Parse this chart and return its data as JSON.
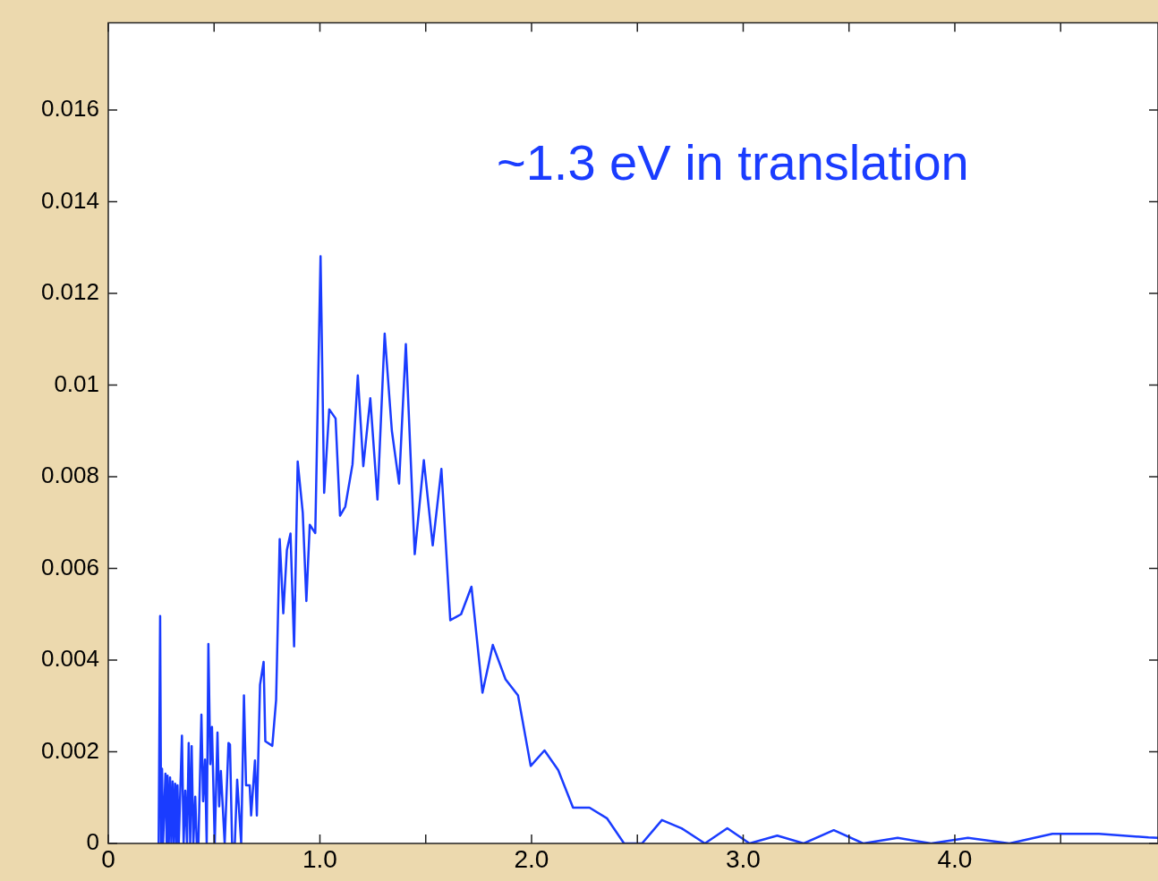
{
  "chart_data": {
    "type": "line",
    "marker": "none",
    "grid": false,
    "legend": false,
    "annotations": [
      "~1.3 eV in translation"
    ],
    "xlim": [
      0,
      4.96
    ],
    "xticks": [
      0,
      {
        "value": 0.5,
        "label": null
      },
      {
        "value": 1,
        "label": "1.0"
      },
      {
        "value": 1.5,
        "label": null
      },
      {
        "value": 2,
        "label": "2.0"
      },
      {
        "value": 2.5,
        "label": null
      },
      {
        "value": 3,
        "label": "3.0"
      },
      {
        "value": 3.5,
        "label": null
      },
      {
        "value": 4,
        "label": "4.0"
      },
      {
        "value": 4.5,
        "label": null
      }
    ],
    "ylim": [
      0,
      0.0179
    ],
    "yticks": [
      0,
      0.002,
      0.004,
      0.006,
      0.008,
      0.01,
      0.012,
      0.014,
      0.016
    ],
    "series": [
      {
        "color": "#1a3cff",
        "x": [
          0.238,
          0.245,
          0.25,
          0.254,
          0.259,
          0.27,
          0.276,
          0.28,
          0.286,
          0.292,
          0.298,
          0.304,
          0.31,
          0.316,
          0.322,
          0.327,
          0.333,
          0.348,
          0.356,
          0.364,
          0.372,
          0.38,
          0.387,
          0.394,
          0.402,
          0.411,
          0.418,
          0.426,
          0.44,
          0.448,
          0.457,
          0.465,
          0.473,
          0.482,
          0.49,
          0.503,
          0.516,
          0.524,
          0.532,
          0.55,
          0.568,
          0.575,
          0.585,
          0.598,
          0.609,
          0.628,
          0.641,
          0.651,
          0.668,
          0.675,
          0.693,
          0.702,
          0.717,
          0.734,
          0.742,
          0.775,
          0.793,
          0.81,
          0.827,
          0.844,
          0.861,
          0.878,
          0.895,
          0.919,
          0.936,
          0.952,
          0.978,
          1.003,
          1.02,
          1.044,
          1.074,
          1.095,
          1.12,
          1.154,
          1.179,
          1.205,
          1.238,
          1.272,
          1.306,
          1.34,
          1.374,
          1.406,
          1.448,
          1.491,
          1.533,
          1.574,
          1.616,
          1.667,
          1.716,
          1.768,
          1.817,
          1.877,
          1.936,
          1.996,
          2.061,
          2.126,
          2.196,
          2.274,
          2.356,
          2.437,
          2.522,
          2.616,
          2.709,
          2.819,
          2.925,
          3.03,
          3.161,
          3.286,
          3.428,
          3.567,
          3.73,
          3.888,
          4.062,
          4.258,
          4.461,
          4.681,
          4.915,
          4.96
        ],
        "values": [
          0,
          0.00496,
          0,
          0.00163,
          0,
          0.00152,
          0,
          0.00148,
          0,
          0.00144,
          0,
          0.00135,
          0,
          0.0013,
          0,
          0.00127,
          0,
          0.00235,
          0,
          0.00115,
          0,
          0.00219,
          0,
          0.00212,
          0,
          0.00102,
          0,
          0,
          0.00281,
          0.00092,
          0.00183,
          0,
          0.00435,
          0.00173,
          0.00254,
          0,
          0.00242,
          0.00081,
          0.00158,
          0,
          0.00219,
          0.00216,
          0,
          0,
          0.00139,
          0,
          0.00323,
          0.00127,
          0.00127,
          0.00061,
          0.00181,
          0.00061,
          0.00346,
          0.00396,
          0.00223,
          0.00213,
          0.00313,
          0.00664,
          0.00502,
          0.0064,
          0.00676,
          0.0043,
          0.00833,
          0.00721,
          0.00529,
          0.00695,
          0.00677,
          0.01281,
          0.00765,
          0.00947,
          0.00927,
          0.00715,
          0.00735,
          0.00827,
          0.01021,
          0.00823,
          0.00971,
          0.0075,
          0.01112,
          0.009,
          0.00785,
          0.01089,
          0.00631,
          0.00836,
          0.0065,
          0.00817,
          0.00487,
          0.005,
          0.0056,
          0.00329,
          0.00433,
          0.00358,
          0.00323,
          0.00169,
          0.00203,
          0.0016,
          0.00078,
          0.00078,
          0.00055,
          0,
          0,
          0.00051,
          0.00033,
          0,
          0.00033,
          0,
          0.00017,
          0,
          0.00029,
          0,
          0.00012,
          0,
          0.00012,
          0,
          0.00021,
          0.00021,
          0.00013,
          0.00012
        ]
      }
    ]
  }
}
